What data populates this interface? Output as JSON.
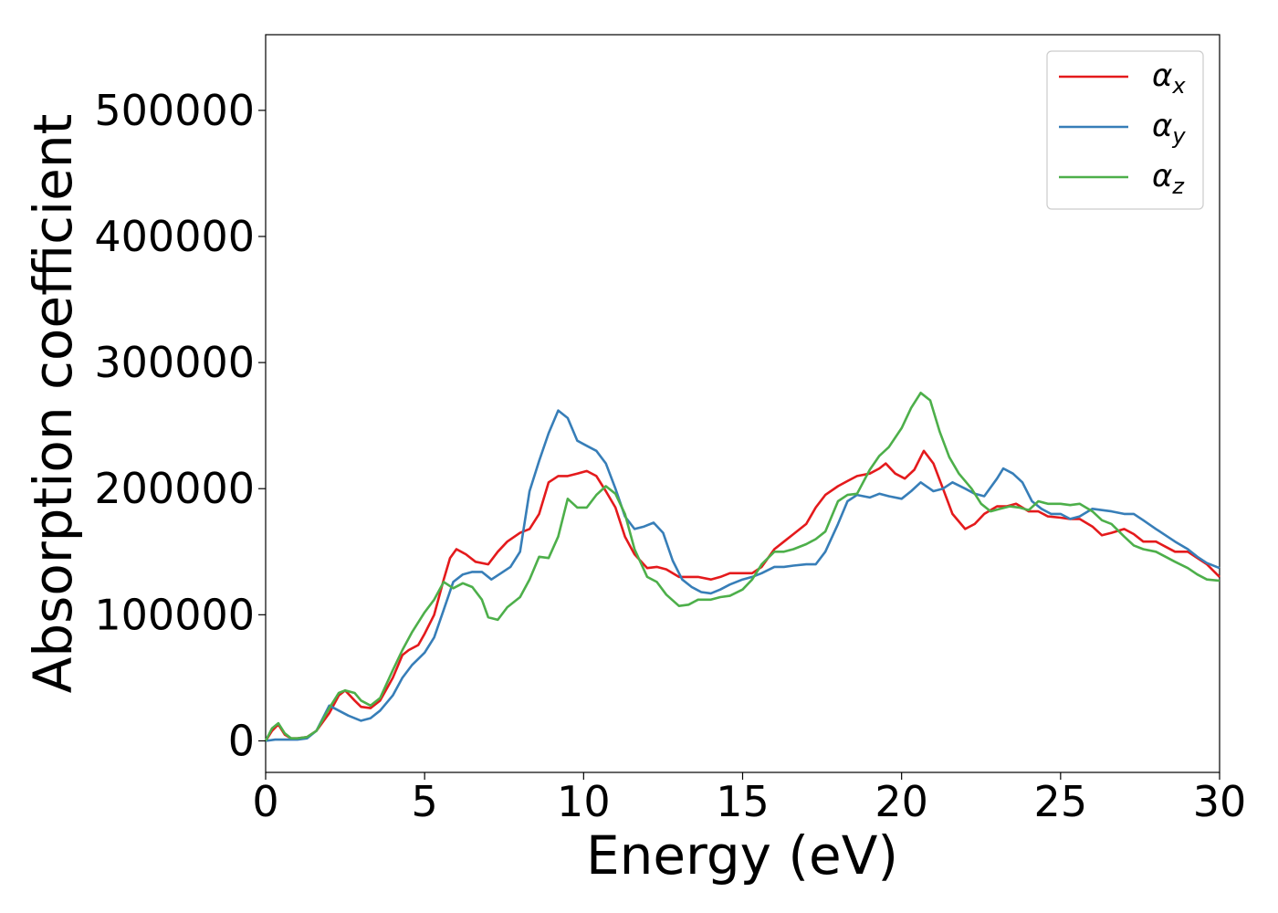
{
  "chart_data": {
    "type": "line",
    "title": "",
    "xlabel": "Energy (eV)",
    "ylabel": "Absorption coefficient",
    "xlim": [
      0,
      30
    ],
    "ylim": [
      -25000,
      560000
    ],
    "xticks": [
      0,
      5,
      10,
      15,
      20,
      25,
      30
    ],
    "yticks": [
      0,
      100000,
      200000,
      300000,
      400000,
      500000
    ],
    "xtick_labels": [
      "0",
      "5",
      "10",
      "15",
      "20",
      "25",
      "30"
    ],
    "ytick_labels": [
      "0",
      "100000",
      "200000",
      "300000",
      "400000",
      "500000"
    ],
    "grid": false,
    "legend_position": "top-right",
    "series": [
      {
        "name": "α_x",
        "legend_base": "α",
        "legend_sub": "x",
        "color": "#e41a1c",
        "x": [
          0,
          0.2,
          0.4,
          0.6,
          0.8,
          1.0,
          1.3,
          1.6,
          2.0,
          2.3,
          2.5,
          2.8,
          3.0,
          3.3,
          3.6,
          4.0,
          4.3,
          4.5,
          4.8,
          5.0,
          5.3,
          5.6,
          5.8,
          6.0,
          6.3,
          6.6,
          7.0,
          7.3,
          7.6,
          8.0,
          8.3,
          8.6,
          8.9,
          9.2,
          9.5,
          9.8,
          10.1,
          10.4,
          10.7,
          11.0,
          11.3,
          11.6,
          12.0,
          12.3,
          12.6,
          13.0,
          13.3,
          13.6,
          14.0,
          14.3,
          14.6,
          15.0,
          15.3,
          15.6,
          16.0,
          16.3,
          16.6,
          17.0,
          17.3,
          17.6,
          18.0,
          18.3,
          18.6,
          19.0,
          19.3,
          19.5,
          19.8,
          20.1,
          20.4,
          20.7,
          21.0,
          21.3,
          21.6,
          22.0,
          22.3,
          22.6,
          23.0,
          23.3,
          23.6,
          24.0,
          24.3,
          24.6,
          25.0,
          25.3,
          25.6,
          26.0,
          26.3,
          26.6,
          27.0,
          27.3,
          27.6,
          28.0,
          28.3,
          28.6,
          29.0,
          29.3,
          29.6,
          30.0
        ],
        "y": [
          0,
          8000,
          13000,
          5000,
          2000,
          2000,
          3000,
          8000,
          22000,
          36000,
          40000,
          32000,
          27000,
          26000,
          32000,
          50000,
          68000,
          72000,
          76000,
          85000,
          100000,
          128000,
          145000,
          152000,
          148000,
          142000,
          140000,
          150000,
          158000,
          165000,
          168000,
          180000,
          205000,
          210000,
          210000,
          212000,
          214000,
          210000,
          198000,
          185000,
          162000,
          148000,
          137000,
          138000,
          136000,
          130000,
          130000,
          130000,
          128000,
          130000,
          133000,
          133000,
          133000,
          138000,
          152000,
          158000,
          164000,
          172000,
          185000,
          195000,
          202000,
          206000,
          210000,
          212000,
          216000,
          220000,
          212000,
          208000,
          215000,
          230000,
          220000,
          200000,
          180000,
          168000,
          172000,
          180000,
          186000,
          186000,
          188000,
          182000,
          182000,
          178000,
          177000,
          176000,
          176000,
          170000,
          163000,
          165000,
          168000,
          164000,
          158000,
          158000,
          154000,
          150000,
          150000,
          145000,
          140000,
          130000
        ]
      },
      {
        "name": "α_y",
        "legend_base": "α",
        "legend_sub": "y",
        "color": "#377eb8",
        "x": [
          0,
          0.3,
          0.6,
          1.0,
          1.3,
          1.6,
          2.0,
          2.3,
          2.6,
          3.0,
          3.3,
          3.6,
          4.0,
          4.3,
          4.6,
          5.0,
          5.3,
          5.6,
          5.9,
          6.2,
          6.5,
          6.8,
          7.1,
          7.4,
          7.7,
          8.0,
          8.3,
          8.6,
          8.9,
          9.2,
          9.5,
          9.8,
          10.1,
          10.4,
          10.7,
          11.0,
          11.3,
          11.6,
          11.9,
          12.2,
          12.5,
          12.8,
          13.1,
          13.4,
          13.7,
          14.0,
          14.3,
          14.6,
          15.0,
          15.3,
          15.6,
          16.0,
          16.3,
          16.6,
          17.0,
          17.3,
          17.6,
          18.0,
          18.3,
          18.6,
          19.0,
          19.3,
          19.6,
          20.0,
          20.3,
          20.6,
          21.0,
          21.3,
          21.6,
          22.0,
          22.3,
          22.6,
          23.0,
          23.2,
          23.5,
          23.8,
          24.1,
          24.4,
          24.7,
          25.0,
          25.3,
          25.6,
          26.0,
          26.3,
          26.6,
          27.0,
          27.3,
          27.6,
          28.0,
          28.3,
          28.6,
          29.0,
          29.3,
          29.6,
          30.0
        ],
        "y": [
          0,
          1000,
          1000,
          1000,
          2000,
          8000,
          28000,
          24000,
          20000,
          16000,
          18000,
          24000,
          36000,
          50000,
          60000,
          70000,
          82000,
          104000,
          126000,
          132000,
          134000,
          134000,
          128000,
          133000,
          138000,
          150000,
          198000,
          222000,
          244000,
          262000,
          256000,
          238000,
          234000,
          230000,
          220000,
          200000,
          178000,
          168000,
          170000,
          173000,
          165000,
          143000,
          128000,
          122000,
          118000,
          117000,
          120000,
          124000,
          128000,
          130000,
          133000,
          138000,
          138000,
          139000,
          140000,
          140000,
          150000,
          172000,
          190000,
          195000,
          193000,
          196000,
          194000,
          192000,
          198000,
          205000,
          198000,
          200000,
          205000,
          200000,
          196000,
          194000,
          208000,
          216000,
          212000,
          205000,
          190000,
          184000,
          180000,
          180000,
          176000,
          178000,
          184000,
          183000,
          182000,
          180000,
          180000,
          175000,
          168000,
          163000,
          158000,
          152000,
          146000,
          141000,
          137000
        ]
      },
      {
        "name": "α_z",
        "legend_base": "α",
        "legend_sub": "z",
        "color": "#4daf4a",
        "x": [
          0,
          0.2,
          0.4,
          0.6,
          0.8,
          1.0,
          1.3,
          1.6,
          2.0,
          2.3,
          2.5,
          2.8,
          3.0,
          3.3,
          3.6,
          4.0,
          4.3,
          4.6,
          5.0,
          5.3,
          5.6,
          5.9,
          6.2,
          6.5,
          6.8,
          7.0,
          7.3,
          7.6,
          8.0,
          8.3,
          8.6,
          8.9,
          9.2,
          9.5,
          9.8,
          10.1,
          10.4,
          10.7,
          11.0,
          11.3,
          11.6,
          12.0,
          12.3,
          12.6,
          13.0,
          13.3,
          13.6,
          14.0,
          14.3,
          14.6,
          15.0,
          15.3,
          15.6,
          16.0,
          16.3,
          16.6,
          17.0,
          17.3,
          17.6,
          18.0,
          18.3,
          18.6,
          19.0,
          19.3,
          19.6,
          20.0,
          20.3,
          20.6,
          20.9,
          21.2,
          21.5,
          21.8,
          22.2,
          22.5,
          22.8,
          23.1,
          23.4,
          23.7,
          24.0,
          24.3,
          24.6,
          25.0,
          25.3,
          25.6,
          26.0,
          26.3,
          26.6,
          27.0,
          27.3,
          27.6,
          28.0,
          28.3,
          28.6,
          29.0,
          29.3,
          29.6,
          30.0
        ],
        "y": [
          0,
          10000,
          14000,
          6000,
          2000,
          2000,
          3000,
          8000,
          26000,
          38000,
          40000,
          38000,
          32000,
          28000,
          34000,
          56000,
          72000,
          86000,
          102000,
          112000,
          126000,
          121000,
          125000,
          122000,
          112000,
          98000,
          96000,
          106000,
          114000,
          128000,
          146000,
          145000,
          162000,
          192000,
          185000,
          185000,
          195000,
          202000,
          196000,
          180000,
          152000,
          130000,
          126000,
          116000,
          107000,
          108000,
          112000,
          112000,
          114000,
          115000,
          120000,
          128000,
          140000,
          150000,
          150000,
          152000,
          156000,
          160000,
          166000,
          190000,
          195000,
          196000,
          215000,
          226000,
          233000,
          248000,
          264000,
          276000,
          270000,
          245000,
          225000,
          212000,
          200000,
          188000,
          182000,
          184000,
          186000,
          185000,
          183000,
          190000,
          188000,
          188000,
          187000,
          188000,
          182000,
          175000,
          172000,
          162000,
          155000,
          152000,
          150000,
          146000,
          142000,
          137000,
          132000,
          128000,
          127000
        ]
      }
    ]
  }
}
